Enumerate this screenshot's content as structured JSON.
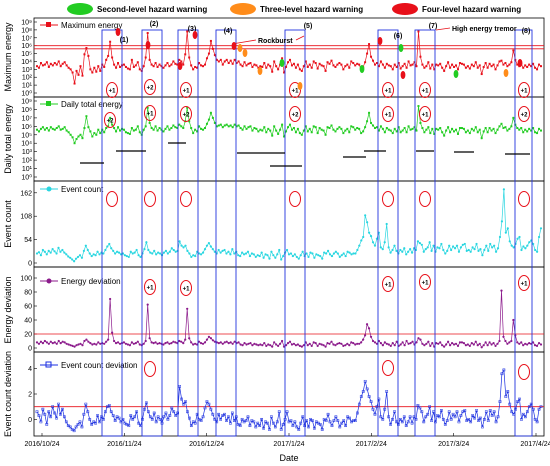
{
  "legend": [
    {
      "label": "Second-level hazard warning",
      "color": "#22cc22"
    },
    {
      "label": "Three-level hazard warning",
      "color": "#ff8c1a"
    },
    {
      "label": "Four-level hazard warning",
      "color": "#e8101a"
    }
  ],
  "xlabel": "Date",
  "x_ticks": [
    "2016/10/24",
    "2016/11/24",
    "2016/12/24",
    "2017/1/24",
    "2017/2/24",
    "2017/3/24",
    "2017/4/24"
  ],
  "annotations": {
    "rockburst": "Rockburst",
    "high_energy_tremor": "High energy tremor",
    "event_labels": [
      "(1)",
      "(2)",
      "(3)",
      "(4)",
      "(5)",
      "(6)",
      "(7)",
      "(8)"
    ],
    "mark_plus1": "+1",
    "mark_plus2": "+2"
  },
  "colors": {
    "max_energy": "#e8101a",
    "daily_energy": "#22cc22",
    "event_count": "#29d6e0",
    "energy_dev": "#8b1a8b",
    "count_dev": "#1a2ee0",
    "threshold": "#e8101a",
    "box": "#2233dd"
  },
  "chart_data": [
    {
      "type": "line",
      "ylabel": "Maximum energy",
      "series": [
        {
          "name": "Maximum energy"
        }
      ],
      "y_ticks": [
        "10⁰",
        "10¹",
        "10²",
        "10³",
        "10⁴",
        "10⁵",
        "10⁶",
        "10⁷",
        "10⁸",
        "10⁹"
      ],
      "ylim_log": [
        0,
        9
      ],
      "thresholds_log": [
        6.0,
        5.6
      ],
      "values_log": [
        3.4,
        3.2,
        3.8,
        3.5,
        3.6,
        3.9,
        3.3,
        3.7,
        3.5,
        3.8,
        3.6,
        4.0,
        3.4,
        3.7,
        3.9,
        3.5,
        3.2,
        3.0,
        2.6,
        1.2,
        2.8,
        2.3,
        3.4,
        2.2,
        4.9,
        5.7,
        4.7,
        3.0,
        2.6,
        3.2,
        2.7,
        3.4,
        2.8,
        3.6,
        3.3,
        4.2,
        4.7,
        6.5,
        4.5,
        3.6,
        3.2,
        3.8,
        3.3,
        3.5,
        3.6,
        3.3,
        3.1,
        3.0,
        4.2,
        3.3,
        3.5,
        3.9,
        3.0,
        2.8,
        3.4,
        4.5,
        7.6,
        4.2,
        3.6,
        3.4,
        3.8,
        3.3,
        3.6,
        3.4,
        3.2,
        3.5,
        3.8,
        3.4,
        3.6,
        4.0,
        3.7,
        3.6,
        4.2,
        4.0,
        3.6,
        4.9,
        7.8,
        4.5,
        3.5,
        3.0,
        3.3,
        3.2,
        3.8,
        3.5,
        3.4,
        3.6,
        4.4,
        5.0,
        6.6,
        5.6,
        4.8,
        4.2,
        4.0,
        4.2,
        3.6,
        4.0,
        4.2,
        3.8,
        4.1,
        3.7,
        4.2,
        3.8,
        4.0,
        3.6,
        3.4,
        3.9,
        3.5,
        3.7,
        3.8,
        3.3,
        3.6,
        3.5,
        3.2,
        3.4,
        3.3,
        3.8,
        3.2,
        3.6,
        3.4,
        2.7,
        4.0,
        3.4,
        3.0,
        3.6,
        4.4,
        2.6,
        3.3,
        3.9,
        4.2,
        3.5,
        3.7,
        3.2,
        3.6,
        3.0,
        2.8,
        3.4,
        4.0,
        3.3,
        3.6,
        3.2,
        4.0,
        3.8,
        3.1,
        3.7,
        3.5,
        3.4,
        2.8,
        3.9,
        3.7,
        4.1,
        3.5,
        3.3,
        3.6,
        3.8,
        3.6,
        3.0,
        3.4,
        3.6,
        3.2,
        4.0,
        3.8,
        3.5,
        3.7,
        3.6,
        3.0,
        3.3,
        3.9,
        5.0,
        6.2,
        4.6,
        4.1,
        3.6,
        3.8,
        3.4,
        4.0,
        3.6,
        3.2,
        3.7,
        3.5,
        3.4,
        3.0,
        3.6,
        3.3,
        3.8,
        3.1,
        3.4,
        3.7,
        3.2,
        4.0,
        3.5,
        3.6,
        3.9,
        3.4,
        7.8,
        4.6,
        3.6,
        3.2,
        3.4,
        3.9,
        3.1,
        3.6,
        3.0,
        3.6,
        3.5,
        3.7,
        3.2,
        2.8,
        3.4,
        3.9,
        3.2,
        3.6,
        3.3,
        3.5,
        3.0,
        3.8,
        3.7,
        3.6,
        3.2,
        3.4,
        3.1,
        3.6,
        3.4,
        3.9,
        3.2,
        3.5,
        2.4,
        3.3,
        3.8,
        3.2,
        3.7,
        3.4,
        3.6,
        3.0,
        3.5,
        4.0,
        4.1,
        3.6,
        3.8,
        3.4,
        3.6,
        3.9,
        5.4,
        4.2,
        3.6,
        3.4,
        3.7,
        3.2,
        3.5,
        3.3,
        3.6,
        3.4,
        3.7,
        3.2,
        3.0,
        3.6,
        3.4
      ]
    },
    {
      "type": "line",
      "ylabel": "Daily total energy",
      "series": [
        {
          "name": "Daily total energy"
        }
      ],
      "y_ticks": [
        "10⁰",
        "10¹",
        "10²",
        "10³",
        "10⁴",
        "10⁵",
        "10⁶",
        "10⁷",
        "10⁸",
        "10⁹"
      ],
      "ylim_log": [
        0,
        9
      ],
      "values_log": [
        5.6,
        5.4,
        5.7,
        5.9,
        5.6,
        5.8,
        5.5,
        5.9,
        5.7,
        5.6,
        5.8,
        6.0,
        5.6,
        5.7,
        5.9,
        5.5,
        5.3,
        5.0,
        4.7,
        4.0,
        4.5,
        4.8,
        5.0,
        4.6,
        5.8,
        7.2,
        5.9,
        5.4,
        4.8,
        5.2,
        5.0,
        5.6,
        5.2,
        5.6,
        5.3,
        5.8,
        6.0,
        7.0,
        6.2,
        5.8,
        5.4,
        5.9,
        5.5,
        5.7,
        5.6,
        5.3,
        5.2,
        5.1,
        5.8,
        5.5,
        5.6,
        6.0,
        5.3,
        5.0,
        5.6,
        6.0,
        8.2,
        6.4,
        5.8,
        5.6,
        6.0,
        5.5,
        5.8,
        5.6,
        5.4,
        5.7,
        6.0,
        5.6,
        5.8,
        6.1,
        5.9,
        5.8,
        6.2,
        6.0,
        5.8,
        6.6,
        8.2,
        6.6,
        5.8,
        5.2,
        5.6,
        5.4,
        6.0,
        5.7,
        5.6,
        5.8,
        6.3,
        6.8,
        7.6,
        7.0,
        6.4,
        6.0,
        6.1,
        6.2,
        5.9,
        6.1,
        6.2,
        6.0,
        6.1,
        5.9,
        6.2,
        6.0,
        6.1,
        5.8,
        5.6,
        6.0,
        5.7,
        5.9,
        6.0,
        5.5,
        5.8,
        5.7,
        5.4,
        5.6,
        5.5,
        5.9,
        5.3,
        5.7,
        5.5,
        4.9,
        6.0,
        5.5,
        5.1,
        5.6,
        6.2,
        4.8,
        5.4,
        5.9,
        6.2,
        5.6,
        5.8,
        5.3,
        5.7,
        5.2,
        5.0,
        5.5,
        6.0,
        5.4,
        5.7,
        5.3,
        6.0,
        5.9,
        5.2,
        5.8,
        5.6,
        5.5,
        5.0,
        5.9,
        5.8,
        6.1,
        5.6,
        5.4,
        5.7,
        5.9,
        5.7,
        5.2,
        5.5,
        5.7,
        5.3,
        6.0,
        5.9,
        5.6,
        5.8,
        5.7,
        5.2,
        5.4,
        5.9,
        6.6,
        7.6,
        6.4,
        6.1,
        5.8,
        5.9,
        5.5,
        6.0,
        5.7,
        5.3,
        5.8,
        5.6,
        5.5,
        5.2,
        5.7,
        5.4,
        5.9,
        5.3,
        5.5,
        5.8,
        5.3,
        6.0,
        5.6,
        5.7,
        5.9,
        5.5,
        8.4,
        6.4,
        5.8,
        5.3,
        5.6,
        5.9,
        5.2,
        5.7,
        5.1,
        5.7,
        5.6,
        5.8,
        5.3,
        4.9,
        5.5,
        5.9,
        5.3,
        5.7,
        5.4,
        5.6,
        5.1,
        5.8,
        5.8,
        5.7,
        5.3,
        5.5,
        5.2,
        5.7,
        5.5,
        5.9,
        5.3,
        5.6,
        4.6,
        5.4,
        5.8,
        5.3,
        5.8,
        5.5,
        5.7,
        5.2,
        5.6,
        6.0,
        6.3,
        5.8,
        5.9,
        5.5,
        5.7,
        6.0,
        7.0,
        6.2,
        5.8,
        5.6,
        5.8,
        5.3,
        5.6,
        5.4,
        5.7,
        5.5,
        5.8,
        5.3,
        5.2,
        5.7,
        5.5
      ]
    },
    {
      "type": "line",
      "ylabel": "Event count",
      "series": [
        {
          "name": "Event count"
        }
      ],
      "y_ticks": [
        "0",
        "54",
        "108",
        "162"
      ],
      "ylim": [
        0,
        180
      ],
      "values": [
        22,
        25,
        18,
        30,
        26,
        20,
        28,
        24,
        32,
        27,
        22,
        35,
        26,
        30,
        24,
        20,
        15,
        12,
        8,
        4,
        10,
        14,
        18,
        12,
        28,
        40,
        30,
        22,
        16,
        20,
        18,
        26,
        20,
        24,
        22,
        30,
        38,
        44,
        34,
        28,
        22,
        26,
        24,
        20,
        22,
        18,
        16,
        14,
        26,
        22,
        24,
        30,
        18,
        14,
        22,
        32,
        48,
        30,
        24,
        22,
        28,
        20,
        24,
        22,
        18,
        24,
        28,
        22,
        26,
        34,
        30,
        26,
        28,
        50,
        40,
        36,
        40,
        28,
        22,
        14,
        18,
        16,
        26,
        22,
        20,
        24,
        32,
        40,
        46,
        38,
        32,
        26,
        22,
        30,
        24,
        28,
        30,
        22,
        26,
        20,
        32,
        22,
        26,
        18,
        16,
        24,
        20,
        22,
        26,
        16,
        22,
        20,
        14,
        18,
        16,
        24,
        12,
        20,
        18,
        10,
        26,
        18,
        12,
        20,
        30,
        8,
        16,
        24,
        30,
        20,
        22,
        16,
        20,
        14,
        10,
        18,
        26,
        16,
        22,
        14,
        24,
        22,
        12,
        20,
        18,
        16,
        10,
        24,
        22,
        28,
        20,
        16,
        22,
        26,
        22,
        14,
        18,
        22,
        16,
        26,
        24,
        20,
        22,
        22,
        30,
        40,
        52,
        60,
        110,
        94,
        70,
        62,
        48,
        40,
        56,
        70,
        36,
        32,
        48,
        90,
        36,
        24,
        30,
        40,
        28,
        22,
        30,
        26,
        34,
        20,
        26,
        32,
        24,
        34,
        30,
        50,
        46,
        42,
        26,
        32,
        36,
        48,
        28,
        40,
        26,
        36,
        34,
        44,
        30,
        22,
        28,
        40,
        30,
        38,
        34,
        40,
        26,
        36,
        42,
        44,
        28,
        30,
        26,
        36,
        32,
        44,
        28,
        32,
        18,
        30,
        40,
        28,
        44,
        36,
        40,
        26,
        34,
        60,
        96,
        170,
        70,
        80,
        50,
        40,
        36,
        44,
        56,
        60,
        30,
        38,
        34,
        40,
        48,
        52,
        44,
        30,
        26,
        60,
        80
      ]
    },
    {
      "type": "line",
      "ylabel": "Energy deviation",
      "series": [
        {
          "name": "Energy deviation"
        }
      ],
      "y_ticks": [
        "0",
        "20",
        "40",
        "60",
        "80",
        "100"
      ],
      "ylim": [
        0,
        110
      ],
      "threshold": 20,
      "values": [
        8,
        6,
        9,
        7,
        10,
        8,
        6,
        9,
        7,
        8,
        6,
        10,
        7,
        9,
        8,
        6,
        5,
        4,
        3,
        2,
        4,
        5,
        6,
        4,
        10,
        12,
        9,
        7,
        5,
        6,
        5,
        8,
        6,
        7,
        6,
        9,
        12,
        70,
        22,
        10,
        7,
        8,
        6,
        7,
        8,
        6,
        5,
        4,
        8,
        6,
        7,
        9,
        5,
        4,
        6,
        10,
        62,
        14,
        8,
        7,
        8,
        6,
        7,
        6,
        5,
        7,
        8,
        6,
        7,
        9,
        8,
        7,
        10,
        9,
        7,
        12,
        56,
        14,
        8,
        5,
        6,
        5,
        9,
        7,
        6,
        8,
        12,
        16,
        14,
        11,
        9,
        8,
        7,
        8,
        6,
        8,
        9,
        7,
        8,
        6,
        9,
        7,
        8,
        5,
        4,
        7,
        5,
        6,
        7,
        4,
        6,
        5,
        4,
        5,
        4,
        7,
        3,
        5,
        4,
        2,
        8,
        5,
        3,
        6,
        10,
        2,
        4,
        7,
        9,
        5,
        6,
        4,
        5,
        3,
        2,
        4,
        8,
        4,
        6,
        3,
        8,
        7,
        3,
        6,
        5,
        4,
        2,
        7,
        6,
        9,
        5,
        4,
        6,
        7,
        6,
        3,
        4,
        6,
        4,
        8,
        7,
        5,
        6,
        6,
        8,
        12,
        18,
        34,
        28,
        16,
        10,
        8,
        6,
        10,
        7,
        4,
        8,
        6,
        5,
        3,
        7,
        4,
        9,
        3,
        5,
        8,
        4,
        10,
        6,
        7,
        9,
        5,
        8,
        14,
        12,
        6,
        4,
        6,
        9,
        3,
        7,
        2,
        7,
        6,
        8,
        4,
        2,
        5,
        9,
        4,
        7,
        5,
        6,
        3,
        8,
        8,
        7,
        4,
        5,
        3,
        7,
        5,
        9,
        4,
        6,
        1,
        4,
        8,
        4,
        8,
        5,
        7,
        3,
        6,
        10,
        82,
        16,
        10,
        6,
        8,
        10,
        40,
        18,
        8,
        6,
        8,
        4,
        6,
        5,
        7,
        6,
        8,
        4,
        3,
        7,
        5
      ]
    },
    {
      "type": "line",
      "ylabel": "Event count deviation",
      "series": [
        {
          "name": "Event count deviation"
        }
      ],
      "y_ticks": [
        "0",
        "2",
        "4"
      ],
      "ylim": [
        -1,
        5
      ],
      "threshold": 1,
      "values": [
        0.6,
        0.3,
        -0.2,
        0.8,
        0.4,
        -0.4,
        0.6,
        0.2,
        1.0,
        0.5,
        0.1,
        1.2,
        0.4,
        0.8,
        0.2,
        -0.2,
        -0.5,
        -0.6,
        -0.8,
        -0.9,
        -0.6,
        -0.4,
        -0.2,
        -0.6,
        0.4,
        1.2,
        0.6,
        0.0,
        -0.4,
        -0.2,
        -0.3,
        0.3,
        -0.2,
        0.2,
        0.0,
        0.6,
        1.0,
        1.1,
        0.6,
        0.3,
        -0.1,
        0.2,
        0.1,
        -0.2,
        0.0,
        -0.3,
        -0.4,
        -0.5,
        0.3,
        0.0,
        0.2,
        0.6,
        -0.3,
        -0.5,
        0.0,
        0.8,
        1.3,
        0.6,
        0.2,
        0.0,
        0.5,
        -0.2,
        0.2,
        0.0,
        -0.3,
        0.2,
        0.5,
        0.0,
        0.3,
        0.9,
        0.6,
        0.3,
        0.5,
        2.6,
        1.6,
        1.2,
        1.4,
        0.6,
        0.1,
        -0.5,
        -0.2,
        -0.3,
        0.4,
        0.0,
        -0.1,
        0.2,
        0.9,
        1.4,
        1.2,
        0.8,
        0.4,
        0.0,
        -0.2,
        0.4,
        0.0,
        0.3,
        0.4,
        -0.1,
        0.2,
        -0.3,
        0.5,
        -0.1,
        0.2,
        -0.4,
        -0.5,
        0.0,
        -0.2,
        -0.1,
        0.2,
        -0.5,
        -0.1,
        -0.2,
        -0.6,
        -0.3,
        -0.5,
        0.0,
        -0.7,
        -0.2,
        -0.3,
        -0.8,
        0.2,
        -0.3,
        -0.6,
        -0.2,
        0.6,
        -0.8,
        -0.4,
        0.0,
        0.6,
        -0.2,
        -0.1,
        -0.5,
        -0.2,
        -0.6,
        -0.8,
        -0.3,
        0.2,
        -0.5,
        -0.1,
        -0.6,
        0.0,
        -0.1,
        -0.7,
        -0.2,
        -0.3,
        -0.4,
        -0.8,
        0.0,
        -0.1,
        0.4,
        -0.2,
        -0.5,
        -0.1,
        0.2,
        -0.1,
        -0.6,
        -0.3,
        -0.1,
        -0.5,
        0.2,
        0.1,
        -0.2,
        -0.1,
        -0.1,
        0.5,
        1.2,
        1.8,
        2.2,
        3.0,
        2.4,
        1.8,
        1.4,
        0.8,
        0.4,
        1.0,
        1.6,
        0.2,
        0.0,
        0.8,
        2.2,
        0.2,
        -0.4,
        0.0,
        0.6,
        -0.2,
        -0.4,
        0.0,
        -0.2,
        0.2,
        -0.5,
        -0.2,
        0.2,
        -0.3,
        0.2,
        0.0,
        1.1,
        0.9,
        0.6,
        -0.2,
        0.2,
        0.4,
        1.0,
        -0.1,
        0.6,
        -0.2,
        0.3,
        0.2,
        0.7,
        0.0,
        -0.4,
        -0.1,
        0.6,
        0.0,
        0.4,
        0.2,
        0.6,
        -0.2,
        0.3,
        0.6,
        0.7,
        -0.1,
        0.0,
        -0.2,
        0.3,
        0.1,
        0.7,
        -0.1,
        0.1,
        -0.6,
        0.0,
        0.6,
        -0.1,
        0.7,
        0.3,
        0.6,
        -0.2,
        0.2,
        1.4,
        3.6,
        3.9,
        1.8,
        2.2,
        1.2,
        0.6,
        0.4,
        0.8,
        1.4,
        1.6,
        0.0,
        0.4,
        0.2,
        0.6,
        1.0,
        1.2,
        0.8,
        0.0,
        -0.2,
        0.8,
        1.0
      ]
    }
  ]
}
